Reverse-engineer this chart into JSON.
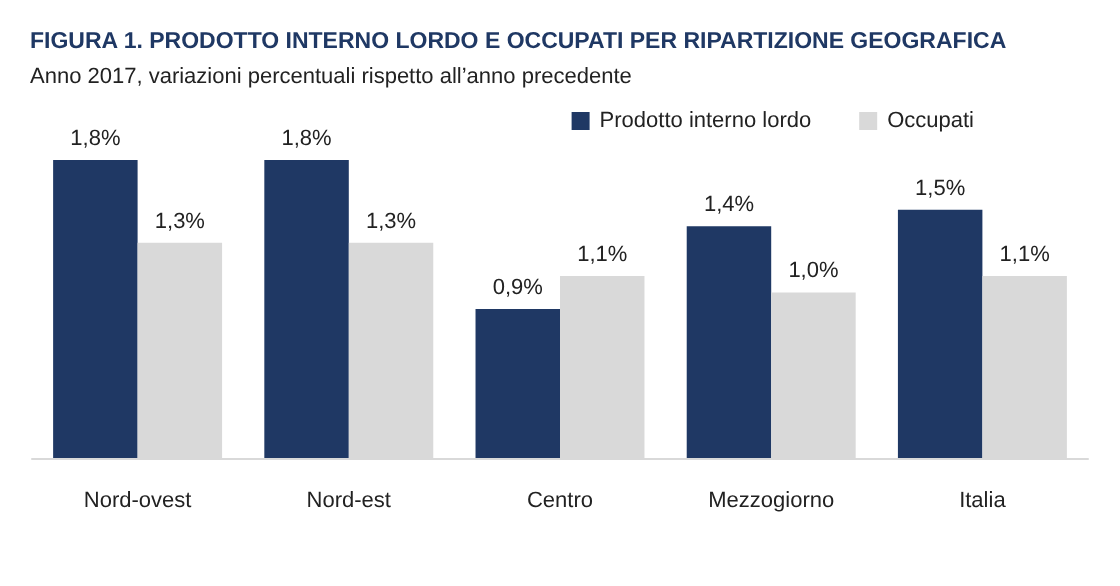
{
  "chart_data": {
    "type": "bar",
    "title": "FIGURA 1. PRODOTTO INTERNO LORDO E OCCUPATI PER RIPARTIZIONE GEOGRAFICA",
    "subtitle": "Anno 2017, variazioni percentuali rispetto all’anno precedente",
    "categories": [
      "Nord-ovest",
      "Nord-est",
      "Centro",
      "Mezzogiorno",
      "Italia"
    ],
    "series": [
      {
        "name": "Prodotto interno lordo",
        "color": "#1f3864",
        "values": [
          1.8,
          1.8,
          0.9,
          1.4,
          1.5
        ],
        "value_labels": [
          "1,8%",
          "1,8%",
          "0,9%",
          "1,4%",
          "1,5%"
        ]
      },
      {
        "name": "Occupati",
        "color": "#d9d9d9",
        "values": [
          1.3,
          1.3,
          1.1,
          1.0,
          1.1
        ],
        "value_labels": [
          "1,3%",
          "1,3%",
          "1,1%",
          "1,0%",
          "1,1%"
        ]
      }
    ],
    "legend": "top right"
  }
}
